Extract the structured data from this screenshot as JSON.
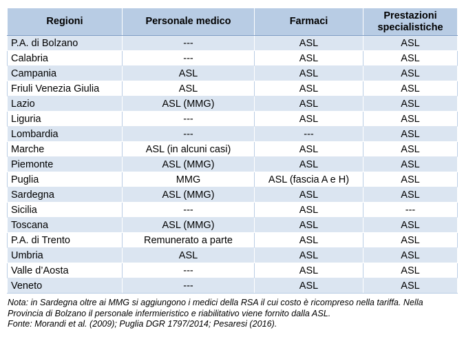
{
  "table": {
    "headers": {
      "region": "Regioni",
      "personale": "Personale medico",
      "farmaci": "Farmaci",
      "prestazioni": "Prestazioni specialistiche"
    },
    "rows": [
      {
        "region": "P.A. di Bolzano",
        "personale": "---",
        "farmaci": "ASL",
        "prestazioni": "ASL"
      },
      {
        "region": "Calabria",
        "personale": "---",
        "farmaci": "ASL",
        "prestazioni": "ASL"
      },
      {
        "region": "Campania",
        "personale": "ASL",
        "farmaci": "ASL",
        "prestazioni": "ASL"
      },
      {
        "region": "Friuli Venezia Giulia",
        "personale": "ASL",
        "farmaci": "ASL",
        "prestazioni": "ASL"
      },
      {
        "region": "Lazio",
        "personale": "ASL (MMG)",
        "farmaci": "ASL",
        "prestazioni": "ASL"
      },
      {
        "region": "Liguria",
        "personale": "---",
        "farmaci": "ASL",
        "prestazioni": "ASL"
      },
      {
        "region": "Lombardia",
        "personale": "---",
        "farmaci": "---",
        "prestazioni": "ASL"
      },
      {
        "region": "Marche",
        "personale": "ASL (in alcuni casi)",
        "farmaci": "ASL",
        "prestazioni": "ASL"
      },
      {
        "region": "Piemonte",
        "personale": "ASL (MMG)",
        "farmaci": "ASL",
        "prestazioni": "ASL"
      },
      {
        "region": "Puglia",
        "personale": "MMG",
        "farmaci": "ASL (fascia A e H)",
        "prestazioni": "ASL"
      },
      {
        "region": "Sardegna",
        "personale": "ASL (MMG)",
        "farmaci": "ASL",
        "prestazioni": "ASL"
      },
      {
        "region": "Sicilia",
        "personale": "---",
        "farmaci": "ASL",
        "prestazioni": "---"
      },
      {
        "region": "Toscana",
        "personale": "ASL (MMG)",
        "farmaci": "ASL",
        "prestazioni": "ASL"
      },
      {
        "region": "P.A. di Trento",
        "personale": "Remunerato a parte",
        "farmaci": "ASL",
        "prestazioni": "ASL"
      },
      {
        "region": "Umbria",
        "personale": "ASL",
        "farmaci": "ASL",
        "prestazioni": "ASL"
      },
      {
        "region": "Valle d’Aosta",
        "personale": "---",
        "farmaci": "ASL",
        "prestazioni": "ASL"
      },
      {
        "region": "Veneto",
        "personale": "---",
        "farmaci": "ASL",
        "prestazioni": "ASL"
      }
    ]
  },
  "note": {
    "nota": "Nota: in Sardegna oltre ai MMG si aggiungono i medici della RSA il cui costo è ricompreso nella tariffa. Nella Provincia di Bolzano il personale infermieristico e riabilitativo viene fornito dalla ASL.",
    "fonte": "Fonte: Morandi et al. (2009); Puglia DGR 1797/2014; Pesaresi (2016)."
  },
  "colors": {
    "header_bg": "#b8cce4",
    "band_bg": "#dbe5f1",
    "plain_bg": "#ffffff"
  }
}
